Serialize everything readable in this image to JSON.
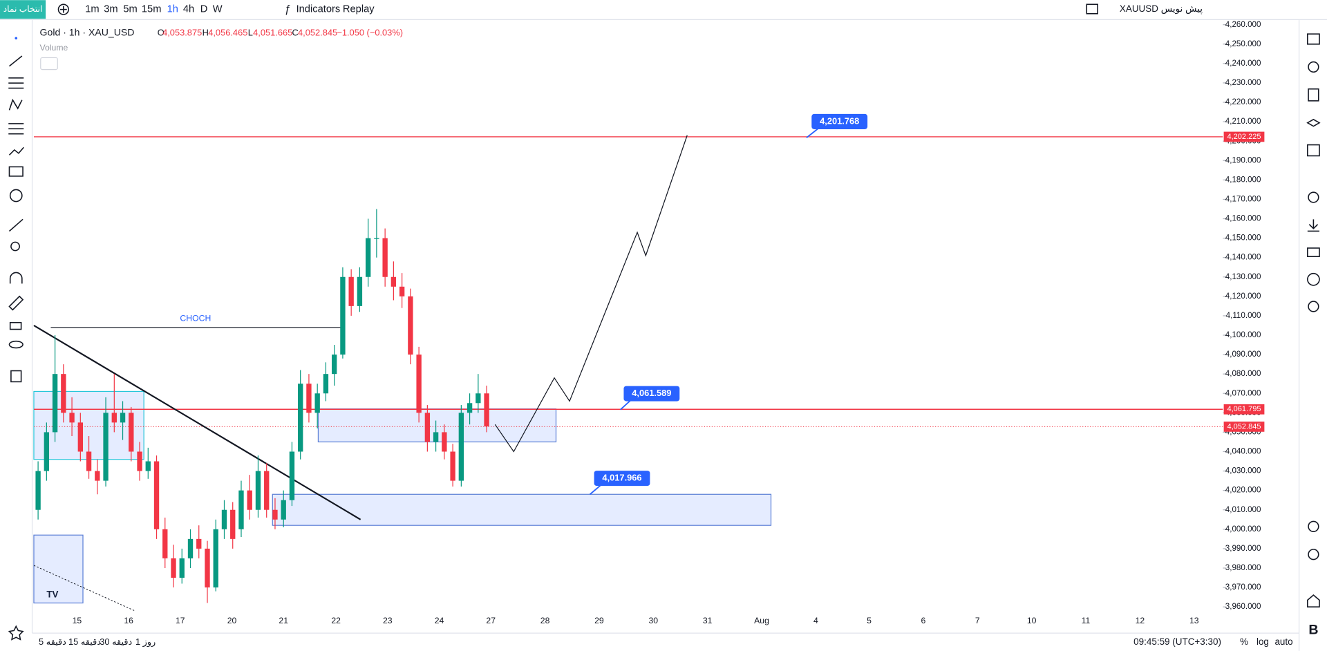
{
  "toolbar": {
    "symbol_button": "انتخاب نماد",
    "intervals": [
      "1m",
      "3m",
      "5m",
      "15m",
      "1h",
      "4h",
      "D",
      "W"
    ],
    "indicators": "Indicators",
    "replay": "Replay",
    "draft": "XAUUSD پیش نویس"
  },
  "legend": {
    "title": "Gold · 1h · XAU_USD",
    "open_label": "O",
    "open": "4,053.875",
    "high_label": "H",
    "high": "4,056.465",
    "low_label": "L",
    "low": "4,051.665",
    "close_label": "C",
    "close": "4,052.845",
    "change": "−1.050 (−0.03%)",
    "volume": "Volume"
  },
  "chart_data": {
    "type": "candlestick",
    "ylim": [
      3960,
      4260
    ],
    "yticks": [
      {
        "value": 4260,
        "label": "4,260.000"
      },
      {
        "value": 4250,
        "label": "4,250.000"
      },
      {
        "value": 4240,
        "label": "4,240.000"
      },
      {
        "value": 4230,
        "label": "4,230.000"
      },
      {
        "value": 4220,
        "label": "4,220.000"
      },
      {
        "value": 4210,
        "label": "4,210.000"
      },
      {
        "value": 4200,
        "label": "4,200.000"
      },
      {
        "value": 4190,
        "label": "4,190.000"
      },
      {
        "value": 4180,
        "label": "4,180.000"
      },
      {
        "value": 4170,
        "label": "4,170.000"
      },
      {
        "value": 4160,
        "label": "4,160.000"
      },
      {
        "value": 4150,
        "label": "4,150.000"
      },
      {
        "value": 4140,
        "label": "4,140.000"
      },
      {
        "value": 4130,
        "label": "4,130.000"
      },
      {
        "value": 4120,
        "label": "4,120.000"
      },
      {
        "value": 4110,
        "label": "4,110.000"
      },
      {
        "value": 4100,
        "label": "4,100.000"
      },
      {
        "value": 4090,
        "label": "4,090.000"
      },
      {
        "value": 4080,
        "label": "4,080.000"
      },
      {
        "value": 4070,
        "label": "4,070.000"
      },
      {
        "value": 4060,
        "label": "4,060.000"
      },
      {
        "value": 4050,
        "label": "4,050.000"
      },
      {
        "value": 4040,
        "label": "4,040.000"
      },
      {
        "value": 4030,
        "label": "4,030.000"
      },
      {
        "value": 4020,
        "label": "4,020.000"
      },
      {
        "value": 4010,
        "label": "4,010.000"
      },
      {
        "value": 4000,
        "label": "4,000.000"
      },
      {
        "value": 3990,
        "label": "3,990.000"
      },
      {
        "value": 3980,
        "label": "3,980.000"
      },
      {
        "value": 3970,
        "label": "3,970.000"
      },
      {
        "value": 3960,
        "label": "3,960.000"
      }
    ],
    "x_labels": [
      "15",
      "16",
      "17",
      "20",
      "21",
      "22",
      "23",
      "24",
      "27",
      "28",
      "29",
      "30",
      "31",
      "Aug",
      "4",
      "5",
      "6",
      "7",
      "10",
      "11",
      "12",
      "13"
    ],
    "candles": [
      [
        4010,
        4035,
        4005,
        4030
      ],
      [
        4030,
        4055,
        4025,
        4050
      ],
      [
        4050,
        4100,
        4045,
        4080
      ],
      [
        4080,
        4085,
        4055,
        4060
      ],
      [
        4060,
        4068,
        4048,
        4055
      ],
      [
        4055,
        4060,
        4035,
        4040
      ],
      [
        4040,
        4048,
        4026,
        4030
      ],
      [
        4030,
        4036,
        4018,
        4025
      ],
      [
        4025,
        4068,
        4022,
        4060
      ],
      [
        4060,
        4080,
        4050,
        4055
      ],
      [
        4055,
        4066,
        4046,
        4060
      ],
      [
        4060,
        4063,
        4035,
        4040
      ],
      [
        4040,
        4045,
        4025,
        4030
      ],
      [
        4030,
        4042,
        4026,
        4035
      ],
      [
        4035,
        4038,
        3995,
        4000
      ],
      [
        4000,
        4006,
        3980,
        3985
      ],
      [
        3985,
        3992,
        3970,
        3975
      ],
      [
        3975,
        3990,
        3972,
        3985
      ],
      [
        3985,
        4000,
        3980,
        3995
      ],
      [
        3995,
        4002,
        3985,
        3990
      ],
      [
        3990,
        3994,
        3962,
        3970
      ],
      [
        3970,
        4005,
        3968,
        4000
      ],
      [
        4000,
        4015,
        3995,
        4010
      ],
      [
        4010,
        4014,
        3990,
        3995
      ],
      [
        4000,
        4025,
        3996,
        4020
      ],
      [
        4020,
        4028,
        4005,
        4010
      ],
      [
        4010,
        4038,
        4006,
        4030
      ],
      [
        4030,
        4034,
        4006,
        4010
      ],
      [
        4010,
        4016,
        4000,
        4005
      ],
      [
        4005,
        4020,
        4001,
        4015
      ],
      [
        4015,
        4045,
        4012,
        4040
      ],
      [
        4040,
        4082,
        4036,
        4075
      ],
      [
        4075,
        4080,
        4055,
        4060
      ],
      [
        4060,
        4075,
        4052,
        4070
      ],
      [
        4070,
        4086,
        4066,
        4080
      ],
      [
        4080,
        4095,
        4074,
        4090
      ],
      [
        4090,
        4135,
        4088,
        4130
      ],
      [
        4130,
        4134,
        4110,
        4115
      ],
      [
        4115,
        4135,
        4112,
        4130
      ],
      [
        4130,
        4160,
        4125,
        4150
      ],
      [
        4150,
        4165,
        4140,
        4150
      ],
      [
        4150,
        4155,
        4125,
        4130
      ],
      [
        4130,
        4138,
        4118,
        4125
      ],
      [
        4125,
        4132,
        4114,
        4120
      ],
      [
        4120,
        4124,
        4085,
        4090
      ],
      [
        4090,
        4094,
        4055,
        4060
      ],
      [
        4060,
        4064,
        4040,
        4045
      ],
      [
        4045,
        4056,
        4040,
        4050
      ],
      [
        4050,
        4054,
        4036,
        4040
      ],
      [
        4040,
        4044,
        4022,
        4025
      ],
      [
        4025,
        4064,
        4022,
        4060
      ],
      [
        4060,
        4070,
        4054,
        4065
      ],
      [
        4065,
        4080,
        4060,
        4070
      ],
      [
        4070,
        4074,
        4050,
        4053
      ]
    ],
    "levels": [
      {
        "value": 4202.225,
        "label": "4,202.225"
      },
      {
        "value": 4061.795,
        "label": "4,061.795"
      }
    ],
    "last_price": {
      "value": 4052.845,
      "label": "4,052.845"
    },
    "annotations": [
      {
        "value": 4201.768,
        "label": "4,201.768"
      },
      {
        "value": 4061.589,
        "label": "4,061.589"
      },
      {
        "value": 4017.966,
        "label": "4,017.966"
      }
    ],
    "zones": [
      {
        "top": 4071,
        "bottom": 4036
      },
      {
        "top": 4062,
        "bottom": 4045
      },
      {
        "top": 4018,
        "bottom": 4002
      },
      {
        "top": 3997,
        "bottom": 3962
      }
    ],
    "choch": {
      "label": "CHOCH",
      "value": 4104
    },
    "trendline": [
      4105,
      4005
    ],
    "projection": [
      4054,
      4040,
      4078,
      4066,
      4153,
      4141,
      4203
    ]
  },
  "bottom_bar": {
    "ranges": [
      "5 دقیقه",
      "15 دقیقه",
      "30 دقیقه",
      "1 روز"
    ],
    "clock": "09:45:59 (UTC+3:30)",
    "percent": "%",
    "log": "log",
    "auto": "auto"
  }
}
